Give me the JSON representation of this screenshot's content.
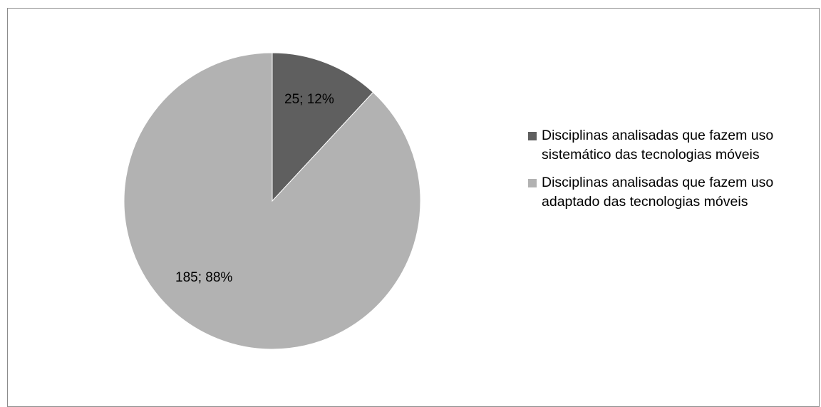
{
  "chart_data": {
    "type": "pie",
    "slices": [
      {
        "name": "Disciplinas analisadas que fazem uso sistemático das tecnologias móveis",
        "value": 25,
        "percent": 12,
        "label": "25; 12%",
        "color": "#5f5f5f"
      },
      {
        "name": "Disciplinas analisadas que fazem uso adaptado das tecnologias móveis",
        "value": 185,
        "percent": 88,
        "label": "185; 88%",
        "color": "#b2b2b2"
      }
    ],
    "start_angle_deg": 0,
    "direction": "clockwise",
    "legend_position": "right"
  }
}
